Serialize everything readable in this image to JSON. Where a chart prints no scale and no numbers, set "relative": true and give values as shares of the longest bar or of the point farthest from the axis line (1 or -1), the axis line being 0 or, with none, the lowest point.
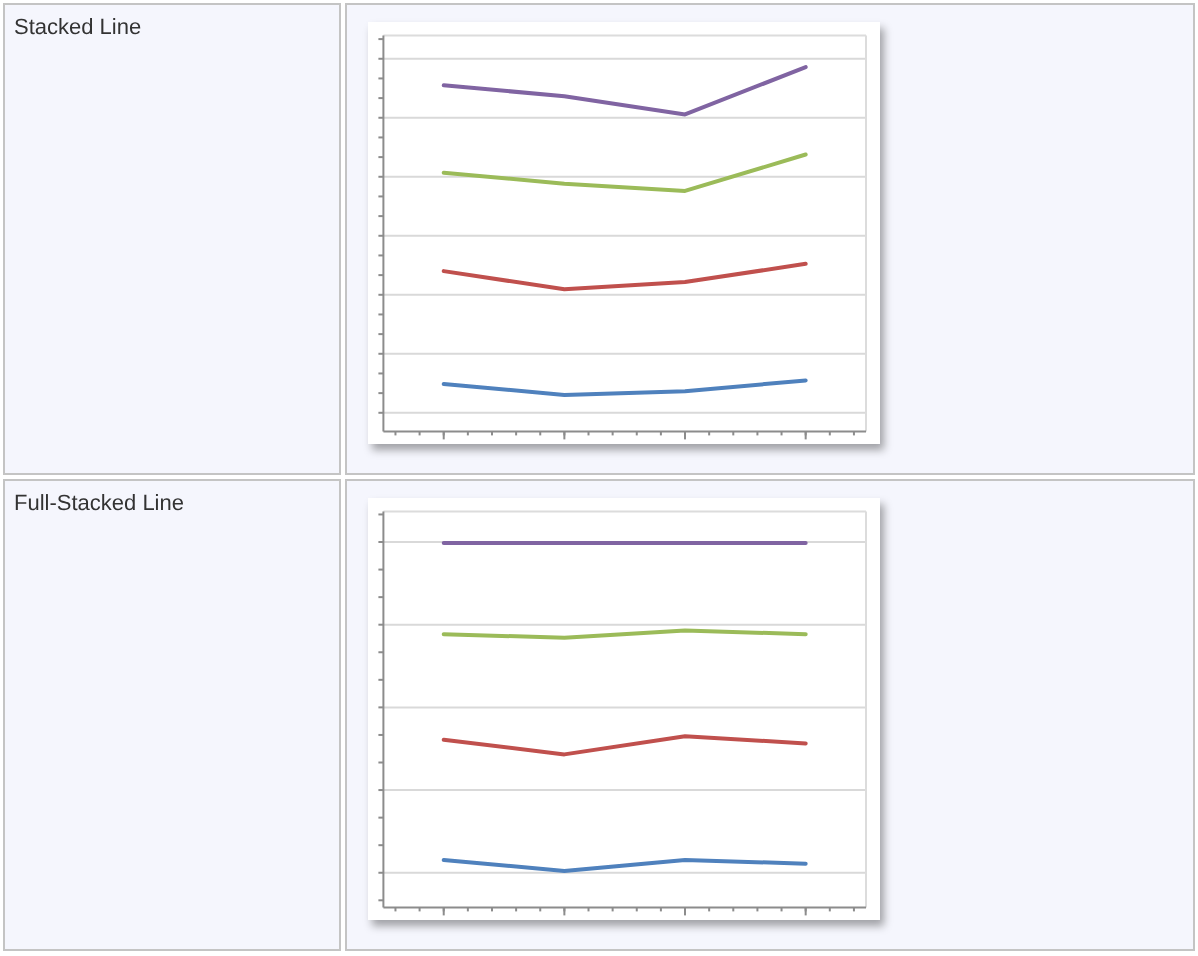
{
  "chart_data": [
    {
      "type": "line",
      "annotations": [
        "Stacked Line"
      ],
      "categories": [
        null,
        null,
        null,
        null
      ],
      "relative": true,
      "grid": "y",
      "series": [
        {
          "color": "#4f81bd",
          "values": [
            0.13,
            0.1,
            0.11,
            0.14
          ]
        },
        {
          "color": "#c0504d",
          "values": [
            0.44,
            0.39,
            0.41,
            0.46
          ]
        },
        {
          "color": "#9bbb59",
          "values": [
            0.71,
            0.68,
            0.66,
            0.76
          ]
        },
        {
          "color": "#8064a2",
          "values": [
            0.95,
            0.92,
            0.87,
            1
          ]
        }
      ]
    },
    {
      "type": "line",
      "annotations": [
        "Full-Stacked Line"
      ],
      "categories": [
        null,
        null,
        null,
        null
      ],
      "relative": true,
      "grid": "y",
      "series": [
        {
          "color": "#4f81bd",
          "values": [
            0.13,
            0.1,
            0.13,
            0.12
          ]
        },
        {
          "color": "#c0504d",
          "values": [
            0.46,
            0.42,
            0.47,
            0.45
          ]
        },
        {
          "color": "#9bbb59",
          "values": [
            0.75,
            0.74,
            0.76,
            0.75
          ]
        },
        {
          "color": "#8064a2",
          "values": [
            1,
            1,
            1,
            1
          ]
        }
      ]
    }
  ]
}
